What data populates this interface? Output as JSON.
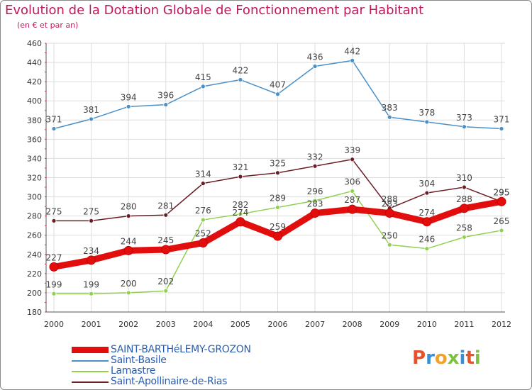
{
  "title": "Evolution de la Dotation Globale de Fonctionnement par Habitant",
  "subtitle": "(en € et par an)",
  "logo": {
    "text": "Proxiti",
    "letters": [
      "P",
      "r",
      "o",
      "x",
      "i",
      "t",
      "i"
    ],
    "colors": [
      "#e8522a",
      "#3a8ed6",
      "#f2a22c",
      "#7cc242",
      "#3a8ed6",
      "#e8522a",
      "#7cc242"
    ]
  },
  "chart_data": {
    "type": "line",
    "title": "Evolution de la Dotation Globale de Fonctionnement par Habitant",
    "subtitle": "(en € et par an)",
    "xlabel": "",
    "ylabel": "",
    "categories": [
      "2000",
      "2001",
      "2002",
      "2003",
      "2004",
      "2005",
      "2006",
      "2007",
      "2008",
      "2009",
      "2010",
      "2011",
      "2012"
    ],
    "ylim": [
      180,
      460
    ],
    "yticks": [
      180,
      200,
      220,
      240,
      260,
      280,
      300,
      320,
      340,
      360,
      380,
      400,
      420,
      440,
      460
    ],
    "grid": true,
    "legend_position": "bottom-left",
    "series": [
      {
        "name": "Saint-Basile",
        "color": "#4a90c8",
        "values": [
          371,
          381,
          394,
          396,
          415,
          422,
          407,
          436,
          442,
          383,
          378,
          373,
          371
        ]
      },
      {
        "name": "Saint-Apollinaire-de-Rias",
        "color": "#6b1e24",
        "values": [
          275,
          275,
          280,
          281,
          314,
          321,
          325,
          332,
          339,
          288,
          304,
          310,
          295
        ]
      },
      {
        "name": "Lamastre",
        "color": "#8fd14f",
        "values": [
          199,
          199,
          200,
          202,
          276,
          282,
          289,
          296,
          306,
          250,
          246,
          258,
          265
        ]
      },
      {
        "name": "SAINT-BARTHéLEMY-GROZON",
        "color": "#e20e0e",
        "values": [
          227,
          234,
          244,
          245,
          252,
          274,
          259,
          283,
          287,
          283,
          274,
          288,
          295
        ]
      }
    ]
  }
}
